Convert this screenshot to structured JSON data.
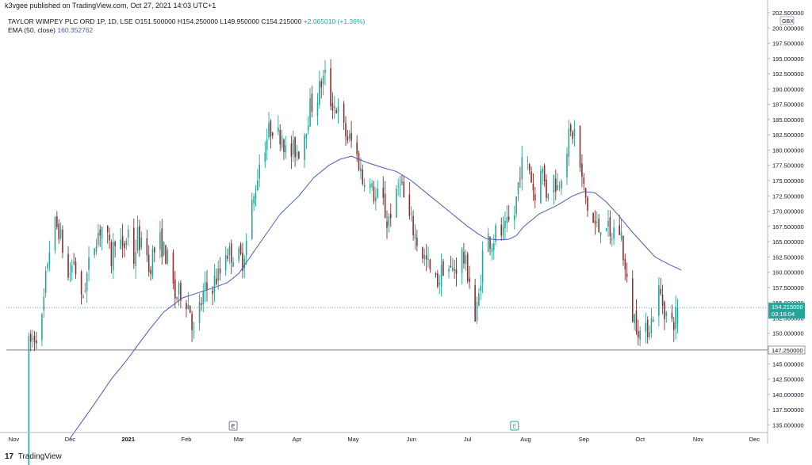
{
  "header": {
    "published": "k3vgee published on TradingView.com, Oct 27, 2021 14:03 UTC+1"
  },
  "legend": {
    "symbol": "TAYLOR WIMPEY PLC ORD 1P, 1D, LSE",
    "open": "O151.500000",
    "high": "H154.250000",
    "low": "L149.950000",
    "close": "C154.215000",
    "change": "+2.065010 (+1.36%)",
    "ema_label": "EMA (50, close)",
    "ema_value": "160.352762"
  },
  "footer": {
    "logo_mark": "17",
    "logo_text": "TradingView"
  },
  "chart_data": {
    "type": "candlestick",
    "currency": "GBX",
    "ylim": [
      133.75,
      202.5
    ],
    "y_ticks": [
      "135.000000",
      "137.500000",
      "140.000000",
      "142.500000",
      "145.000000",
      "147.500000",
      "150.000000",
      "152.500000",
      "155.000000",
      "157.500000",
      "160.000000",
      "162.500000",
      "165.000000",
      "167.500000",
      "170.000000",
      "172.500000",
      "175.000000",
      "177.500000",
      "180.000000",
      "182.500000",
      "185.000000",
      "187.500000",
      "190.000000",
      "192.500000",
      "195.000000",
      "197.500000",
      "200.000000",
      "202.500000"
    ],
    "x_ticks": [
      {
        "label": "Nov",
        "day": 0
      },
      {
        "label": "Dec",
        "day": 30
      },
      {
        "label": "2021",
        "day": 61
      },
      {
        "label": "Feb",
        "day": 92
      },
      {
        "label": "Mar",
        "day": 120
      },
      {
        "label": "Apr",
        "day": 151
      },
      {
        "label": "May",
        "day": 181
      },
      {
        "label": "Jun",
        "day": 212
      },
      {
        "label": "Jul",
        "day": 242
      },
      {
        "label": "Aug",
        "day": 273
      },
      {
        "label": "Sep",
        "day": 304
      },
      {
        "label": "Oct",
        "day": 334
      },
      {
        "label": "Nov",
        "day": 365
      },
      {
        "label": "Dec",
        "day": 395
      }
    ],
    "xlim_days": [
      -4,
      402
    ],
    "current_price": {
      "value": 154.215,
      "label": "154.215000",
      "countdown": "03:16:04"
    },
    "horizontal_line": {
      "value": 147.25,
      "label": "147.250000"
    },
    "events": [
      {
        "label": "E",
        "day": 117,
        "type": "earnings"
      },
      {
        "label": "E",
        "day": 267,
        "type": "dividend"
      }
    ],
    "price_path": [
      [
        6,
        128
      ],
      [
        8,
        148
      ],
      [
        12,
        150
      ],
      [
        15,
        152
      ],
      [
        18,
        162
      ],
      [
        21,
        168
      ],
      [
        24,
        167
      ],
      [
        26,
        164
      ],
      [
        28,
        158
      ],
      [
        32,
        162
      ],
      [
        36,
        155
      ],
      [
        40,
        161
      ],
      [
        44,
        166
      ],
      [
        48,
        168
      ],
      [
        52,
        162
      ],
      [
        55,
        168
      ],
      [
        58,
        163
      ],
      [
        62,
        168
      ],
      [
        64,
        162
      ],
      [
        66,
        166
      ],
      [
        68,
        164
      ],
      [
        70,
        168
      ],
      [
        72,
        160
      ],
      [
        74,
        163
      ],
      [
        78,
        165
      ],
      [
        82,
        162
      ],
      [
        86,
        156
      ],
      [
        90,
        157
      ],
      [
        94,
        154
      ],
      [
        96,
        150
      ],
      [
        98,
        153
      ],
      [
        102,
        157
      ],
      [
        106,
        158
      ],
      [
        110,
        160
      ],
      [
        112,
        164
      ],
      [
        115,
        163
      ],
      [
        118,
        163
      ],
      [
        122,
        162
      ],
      [
        124,
        165
      ],
      [
        126,
        170
      ],
      [
        128,
        172
      ],
      [
        130,
        176
      ],
      [
        132,
        180
      ],
      [
        134,
        181
      ],
      [
        136,
        183
      ],
      [
        138,
        184
      ],
      [
        140,
        182
      ],
      [
        143,
        183
      ],
      [
        146,
        178
      ],
      [
        149,
        180
      ],
      [
        152,
        180
      ],
      [
        155,
        183
      ],
      [
        158,
        187
      ],
      [
        161,
        188
      ],
      [
        164,
        191
      ],
      [
        166,
        192
      ],
      [
        169,
        188
      ],
      [
        172,
        187
      ],
      [
        175,
        184
      ],
      [
        178,
        182
      ],
      [
        181,
        181
      ],
      [
        184,
        178
      ],
      [
        186,
        175
      ],
      [
        188,
        177
      ],
      [
        190,
        174
      ],
      [
        193,
        172
      ],
      [
        196,
        173
      ],
      [
        199,
        168
      ],
      [
        201,
        170
      ],
      [
        204,
        172
      ],
      [
        206,
        176
      ],
      [
        209,
        170
      ],
      [
        212,
        168
      ],
      [
        215,
        165
      ],
      [
        218,
        163
      ],
      [
        221,
        161
      ],
      [
        224,
        158
      ],
      [
        227,
        159
      ],
      [
        230,
        162
      ],
      [
        233,
        160
      ],
      [
        236,
        161
      ],
      [
        239,
        163
      ],
      [
        242,
        160
      ],
      [
        244,
        158
      ],
      [
        246,
        152
      ],
      [
        248,
        156
      ],
      [
        250,
        163
      ],
      [
        252,
        166
      ],
      [
        255,
        165
      ],
      [
        258,
        167
      ],
      [
        261,
        166
      ],
      [
        264,
        168
      ],
      [
        266,
        167
      ],
      [
        268,
        172
      ],
      [
        270,
        177
      ],
      [
        272,
        178
      ],
      [
        275,
        177
      ],
      [
        278,
        172
      ],
      [
        281,
        178
      ],
      [
        284,
        173
      ],
      [
        287,
        176
      ],
      [
        290,
        174
      ],
      [
        293,
        178
      ],
      [
        296,
        182
      ],
      [
        299,
        183
      ],
      [
        301,
        179
      ],
      [
        303,
        175
      ],
      [
        305,
        172
      ],
      [
        307,
        169
      ],
      [
        309,
        168
      ],
      [
        312,
        167
      ],
      [
        315,
        170
      ],
      [
        318,
        165
      ],
      [
        321,
        168
      ],
      [
        324,
        166
      ],
      [
        326,
        160
      ],
      [
        328,
        156
      ],
      [
        330,
        153
      ],
      [
        332,
        152
      ],
      [
        334,
        150
      ],
      [
        336,
        149
      ],
      [
        338,
        151
      ],
      [
        340,
        152
      ],
      [
        342,
        155
      ],
      [
        344,
        157
      ],
      [
        346,
        155
      ],
      [
        348,
        153
      ],
      [
        350,
        151
      ],
      [
        352,
        152
      ],
      [
        354,
        154.2
      ]
    ],
    "price_noise": 2.3,
    "ema_points": [
      [
        30,
        132.8
      ],
      [
        42,
        138
      ],
      [
        52,
        142.5
      ],
      [
        60,
        145.5
      ],
      [
        66,
        148
      ],
      [
        72,
        150.5
      ],
      [
        80,
        153.5
      ],
      [
        90,
        155.8
      ],
      [
        98,
        156.6
      ],
      [
        106,
        157.4
      ],
      [
        114,
        158.3
      ],
      [
        120,
        159.8
      ],
      [
        126,
        162.5
      ],
      [
        134,
        166
      ],
      [
        142,
        169.5
      ],
      [
        152,
        172.5
      ],
      [
        160,
        175.5
      ],
      [
        168,
        177.5
      ],
      [
        174,
        178.5
      ],
      [
        180,
        179
      ],
      [
        188,
        178
      ],
      [
        196,
        177.2
      ],
      [
        204,
        176.5
      ],
      [
        212,
        175
      ],
      [
        222,
        172.5
      ],
      [
        232,
        170
      ],
      [
        242,
        167.5
      ],
      [
        248,
        166.2
      ],
      [
        252,
        165.5
      ],
      [
        258,
        165.3
      ],
      [
        264,
        165.4
      ],
      [
        268,
        166
      ],
      [
        272,
        167.5
      ],
      [
        280,
        169.5
      ],
      [
        290,
        171
      ],
      [
        298,
        172.5
      ],
      [
        304,
        173.2
      ],
      [
        310,
        173
      ],
      [
        316,
        171.5
      ],
      [
        322,
        169.5
      ],
      [
        330,
        166.5
      ],
      [
        336,
        164.5
      ],
      [
        342,
        162.5
      ],
      [
        350,
        161.2
      ],
      [
        356,
        160.35
      ]
    ]
  }
}
